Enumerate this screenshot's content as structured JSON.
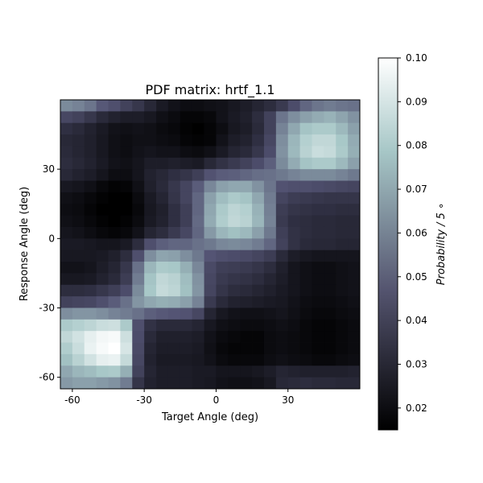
{
  "chart_data": {
    "type": "heatmap",
    "title": "PDF matrix: hrtf_1.1",
    "xlabel": "Target Angle (deg)",
    "ylabel": "Response Angle (deg)",
    "colorbar_label": "Probability / 5 ∘",
    "x_range": [
      -65,
      60
    ],
    "y_range": [
      -65,
      60
    ],
    "cell_size_deg": 5,
    "x_ticks": [
      -60,
      -30,
      0,
      30
    ],
    "x_tick_labels": [
      "-60",
      "-30",
      "0",
      "30"
    ],
    "y_ticks": [
      -60,
      -30,
      0,
      30
    ],
    "y_tick_labels": [
      "-60",
      "-30",
      "0",
      "30"
    ],
    "color_range": [
      0.015,
      0.1
    ],
    "colorbar_ticks": [
      0.02,
      0.03,
      0.04,
      0.05,
      0.06,
      0.07,
      0.08,
      0.09,
      0.1
    ],
    "colorbar_tick_labels": [
      "0.02",
      "0.03",
      "0.04",
      "0.05",
      "0.06",
      "0.07",
      "0.08",
      "0.09",
      "0.10"
    ],
    "colormap": "bone",
    "values_note": "rows ordered from top (response 55..60) to bottom (response -65..-60); columns from target -65..-60 to 55..60",
    "values": [
      [
        0.062,
        0.06,
        0.056,
        0.048,
        0.045,
        0.04,
        0.036,
        0.03,
        0.025,
        0.022,
        0.02,
        0.02,
        0.021,
        0.022,
        0.024,
        0.026,
        0.029,
        0.032,
        0.037,
        0.044,
        0.052,
        0.056,
        0.058,
        0.056,
        0.055
      ],
      [
        0.042,
        0.04,
        0.036,
        0.031,
        0.028,
        0.026,
        0.026,
        0.024,
        0.021,
        0.019,
        0.017,
        0.017,
        0.018,
        0.022,
        0.025,
        0.027,
        0.032,
        0.04,
        0.056,
        0.063,
        0.068,
        0.071,
        0.073,
        0.069,
        0.064
      ],
      [
        0.033,
        0.031,
        0.028,
        0.025,
        0.022,
        0.021,
        0.022,
        0.021,
        0.019,
        0.018,
        0.016,
        0.015,
        0.017,
        0.02,
        0.024,
        0.026,
        0.031,
        0.04,
        0.06,
        0.07,
        0.078,
        0.08,
        0.08,
        0.075,
        0.068
      ],
      [
        0.03,
        0.029,
        0.027,
        0.024,
        0.021,
        0.02,
        0.021,
        0.021,
        0.02,
        0.019,
        0.017,
        0.016,
        0.017,
        0.022,
        0.026,
        0.028,
        0.033,
        0.042,
        0.063,
        0.074,
        0.082,
        0.085,
        0.085,
        0.079,
        0.071
      ],
      [
        0.031,
        0.029,
        0.027,
        0.024,
        0.021,
        0.02,
        0.022,
        0.023,
        0.022,
        0.022,
        0.02,
        0.019,
        0.021,
        0.025,
        0.029,
        0.031,
        0.036,
        0.044,
        0.064,
        0.075,
        0.083,
        0.087,
        0.086,
        0.08,
        0.072
      ],
      [
        0.032,
        0.03,
        0.028,
        0.025,
        0.022,
        0.021,
        0.023,
        0.026,
        0.026,
        0.027,
        0.026,
        0.025,
        0.03,
        0.034,
        0.037,
        0.04,
        0.044,
        0.05,
        0.062,
        0.071,
        0.078,
        0.08,
        0.08,
        0.075,
        0.068
      ],
      [
        0.03,
        0.028,
        0.026,
        0.023,
        0.02,
        0.02,
        0.023,
        0.028,
        0.03,
        0.033,
        0.035,
        0.039,
        0.046,
        0.049,
        0.05,
        0.052,
        0.054,
        0.055,
        0.057,
        0.06,
        0.062,
        0.062,
        0.062,
        0.06,
        0.057
      ],
      [
        0.024,
        0.023,
        0.021,
        0.018,
        0.016,
        0.017,
        0.021,
        0.027,
        0.031,
        0.036,
        0.041,
        0.049,
        0.061,
        0.068,
        0.07,
        0.07,
        0.064,
        0.056,
        0.046,
        0.045,
        0.045,
        0.044,
        0.043,
        0.042,
        0.041
      ],
      [
        0.021,
        0.02,
        0.018,
        0.016,
        0.015,
        0.015,
        0.019,
        0.025,
        0.029,
        0.035,
        0.041,
        0.052,
        0.068,
        0.076,
        0.08,
        0.078,
        0.07,
        0.058,
        0.041,
        0.038,
        0.037,
        0.036,
        0.035,
        0.035,
        0.035
      ],
      [
        0.02,
        0.019,
        0.017,
        0.015,
        0.014,
        0.015,
        0.018,
        0.024,
        0.027,
        0.033,
        0.039,
        0.052,
        0.07,
        0.08,
        0.084,
        0.082,
        0.073,
        0.059,
        0.038,
        0.035,
        0.034,
        0.033,
        0.033,
        0.032,
        0.032
      ],
      [
        0.021,
        0.02,
        0.018,
        0.016,
        0.015,
        0.016,
        0.019,
        0.025,
        0.028,
        0.033,
        0.039,
        0.053,
        0.071,
        0.081,
        0.085,
        0.083,
        0.074,
        0.06,
        0.037,
        0.033,
        0.032,
        0.031,
        0.031,
        0.03,
        0.03
      ],
      [
        0.023,
        0.022,
        0.02,
        0.018,
        0.017,
        0.018,
        0.022,
        0.029,
        0.032,
        0.037,
        0.042,
        0.052,
        0.066,
        0.074,
        0.077,
        0.075,
        0.068,
        0.057,
        0.039,
        0.034,
        0.032,
        0.031,
        0.031,
        0.03,
        0.03
      ],
      [
        0.025,
        0.025,
        0.024,
        0.023,
        0.023,
        0.025,
        0.032,
        0.045,
        0.05,
        0.052,
        0.052,
        0.055,
        0.057,
        0.061,
        0.062,
        0.061,
        0.058,
        0.052,
        0.04,
        0.034,
        0.031,
        0.03,
        0.03,
        0.029,
        0.029
      ],
      [
        0.024,
        0.024,
        0.024,
        0.025,
        0.027,
        0.032,
        0.045,
        0.063,
        0.069,
        0.068,
        0.063,
        0.057,
        0.047,
        0.045,
        0.044,
        0.043,
        0.041,
        0.038,
        0.031,
        0.026,
        0.024,
        0.023,
        0.023,
        0.023,
        0.023
      ],
      [
        0.022,
        0.022,
        0.023,
        0.026,
        0.029,
        0.036,
        0.055,
        0.074,
        0.08,
        0.079,
        0.072,
        0.061,
        0.043,
        0.039,
        0.038,
        0.037,
        0.035,
        0.032,
        0.027,
        0.023,
        0.021,
        0.02,
        0.02,
        0.021,
        0.022
      ],
      [
        0.024,
        0.024,
        0.025,
        0.028,
        0.031,
        0.038,
        0.058,
        0.078,
        0.085,
        0.083,
        0.076,
        0.064,
        0.042,
        0.037,
        0.035,
        0.034,
        0.032,
        0.029,
        0.026,
        0.023,
        0.021,
        0.02,
        0.02,
        0.021,
        0.022
      ],
      [
        0.032,
        0.032,
        0.033,
        0.036,
        0.039,
        0.044,
        0.062,
        0.079,
        0.086,
        0.084,
        0.077,
        0.065,
        0.041,
        0.035,
        0.032,
        0.031,
        0.029,
        0.027,
        0.025,
        0.023,
        0.021,
        0.02,
        0.02,
        0.021,
        0.022
      ],
      [
        0.04,
        0.041,
        0.042,
        0.045,
        0.049,
        0.055,
        0.065,
        0.07,
        0.072,
        0.071,
        0.068,
        0.06,
        0.037,
        0.031,
        0.028,
        0.027,
        0.026,
        0.025,
        0.024,
        0.022,
        0.02,
        0.019,
        0.019,
        0.02,
        0.021
      ],
      [
        0.063,
        0.065,
        0.065,
        0.063,
        0.06,
        0.058,
        0.055,
        0.05,
        0.048,
        0.047,
        0.046,
        0.042,
        0.029,
        0.024,
        0.022,
        0.021,
        0.021,
        0.022,
        0.023,
        0.021,
        0.019,
        0.018,
        0.018,
        0.019,
        0.02
      ],
      [
        0.08,
        0.082,
        0.084,
        0.087,
        0.088,
        0.08,
        0.045,
        0.034,
        0.031,
        0.031,
        0.031,
        0.029,
        0.024,
        0.021,
        0.02,
        0.019,
        0.019,
        0.02,
        0.021,
        0.02,
        0.018,
        0.017,
        0.017,
        0.018,
        0.019
      ],
      [
        0.085,
        0.089,
        0.094,
        0.097,
        0.098,
        0.088,
        0.044,
        0.031,
        0.027,
        0.027,
        0.027,
        0.026,
        0.022,
        0.019,
        0.018,
        0.017,
        0.017,
        0.019,
        0.02,
        0.019,
        0.018,
        0.017,
        0.017,
        0.018,
        0.019
      ],
      [
        0.081,
        0.087,
        0.095,
        0.098,
        0.1,
        0.09,
        0.043,
        0.029,
        0.026,
        0.026,
        0.026,
        0.025,
        0.021,
        0.018,
        0.017,
        0.017,
        0.017,
        0.019,
        0.02,
        0.019,
        0.018,
        0.017,
        0.017,
        0.018,
        0.019
      ],
      [
        0.077,
        0.083,
        0.089,
        0.094,
        0.095,
        0.086,
        0.042,
        0.028,
        0.025,
        0.025,
        0.025,
        0.024,
        0.022,
        0.019,
        0.018,
        0.018,
        0.018,
        0.02,
        0.021,
        0.02,
        0.019,
        0.018,
        0.018,
        0.019,
        0.02
      ],
      [
        0.07,
        0.074,
        0.076,
        0.079,
        0.08,
        0.072,
        0.04,
        0.029,
        0.026,
        0.026,
        0.026,
        0.025,
        0.025,
        0.023,
        0.023,
        0.023,
        0.024,
        0.026,
        0.029,
        0.028,
        0.027,
        0.027,
        0.027,
        0.027,
        0.028
      ],
      [
        0.066,
        0.068,
        0.068,
        0.066,
        0.064,
        0.058,
        0.035,
        0.028,
        0.026,
        0.026,
        0.026,
        0.025,
        0.024,
        0.022,
        0.021,
        0.021,
        0.022,
        0.024,
        0.03,
        0.031,
        0.032,
        0.031,
        0.031,
        0.03,
        0.03
      ]
    ]
  }
}
